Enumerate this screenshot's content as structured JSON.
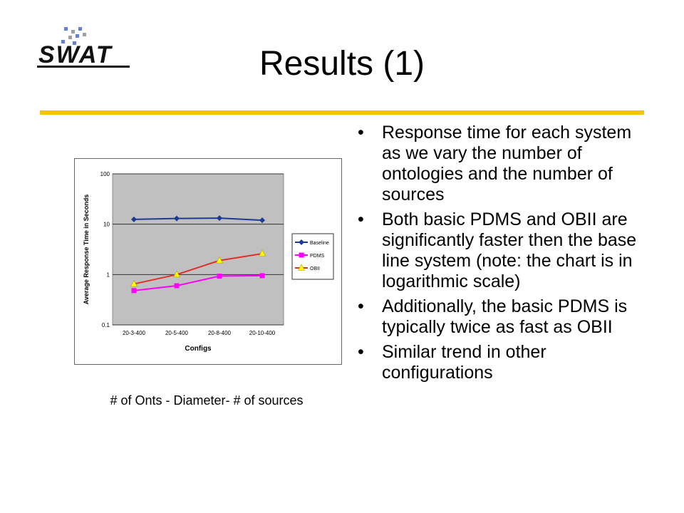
{
  "slide": {
    "title": "Results (1)",
    "caption": "# of Onts - Diameter- # of sources",
    "bullets": [
      "Response time for each system as we vary the number of ontologies and the number of sources",
      "Both basic PDMS and OBII are significantly faster then the base line system (note: the chart is in logarithmic scale)",
      "Additionally, the basic PDMS is typically twice as fast as OBII",
      "Similar trend in other configurations"
    ]
  },
  "logo": {
    "text": "SWAT",
    "accent_color": "#6b7fc9"
  },
  "colors": {
    "rule": "#f5c400",
    "plot_bg": "#c0c0c0"
  },
  "chart_data": {
    "type": "line",
    "categories": [
      "20-3-400",
      "20-5-400",
      "20-8-400",
      "20-10-400"
    ],
    "xlabel": "Configs",
    "ylabel": "Average Response Time in Seconds",
    "yscale": "log",
    "ylim": [
      0.1,
      100
    ],
    "yticks": [
      "100",
      "10",
      "1",
      "0.1"
    ],
    "grid": true,
    "legend_position": "right",
    "series": [
      {
        "name": "Baseline",
        "values": [
          12.5,
          13.0,
          13.2,
          12.0
        ],
        "color": "#1f3a93",
        "marker": "diamond"
      },
      {
        "name": "PDMS",
        "values": [
          0.48,
          0.6,
          0.93,
          0.95
        ],
        "color": "#ff00ff",
        "marker": "square"
      },
      {
        "name": "OBII",
        "values": [
          0.65,
          1.0,
          1.9,
          2.6
        ],
        "color": "#e0302a",
        "marker": "triangle"
      }
    ]
  }
}
